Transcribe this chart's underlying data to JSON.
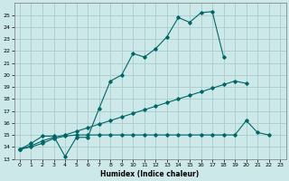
{
  "title": "",
  "xlabel": "Humidex (Indice chaleur)",
  "ylabel": "",
  "bg_color": "#cce8e8",
  "grid_color": "#aacccc",
  "line_color": "#006666",
  "xlim": [
    -0.5,
    23.5
  ],
  "ylim": [
    13,
    26
  ],
  "xticks": [
    0,
    1,
    2,
    3,
    4,
    5,
    6,
    7,
    8,
    9,
    10,
    11,
    12,
    13,
    14,
    15,
    16,
    17,
    18,
    19,
    20,
    21,
    22,
    23
  ],
  "yticks": [
    13,
    14,
    15,
    16,
    17,
    18,
    19,
    20,
    21,
    22,
    23,
    24,
    25
  ],
  "series": [
    {
      "x": [
        0,
        1,
        2,
        3,
        4,
        5,
        6,
        7,
        8,
        9,
        10,
        11,
        12,
        13,
        14,
        15,
        16,
        17,
        18
      ],
      "y": [
        13.8,
        14.3,
        14.9,
        14.9,
        13.2,
        14.8,
        14.8,
        17.2,
        19.5,
        20.0,
        21.8,
        21.5,
        22.2,
        23.2,
        24.8,
        24.4,
        25.2,
        25.3,
        21.5
      ]
    },
    {
      "x": [
        0,
        1,
        2,
        3,
        4,
        5,
        6,
        7,
        8,
        9,
        10,
        11,
        12,
        13,
        14,
        15,
        16,
        17,
        18,
        19,
        20
      ],
      "y": [
        13.8,
        14.1,
        14.5,
        14.8,
        15.0,
        15.3,
        15.6,
        15.9,
        16.2,
        16.5,
        16.8,
        17.1,
        17.4,
        17.7,
        18.0,
        18.3,
        18.6,
        18.9,
        19.2,
        19.5,
        19.3
      ]
    },
    {
      "x": [
        0,
        1,
        2,
        3,
        4,
        5,
        6,
        7,
        8,
        9,
        10,
        11,
        12,
        13,
        14,
        15,
        16,
        17,
        18,
        19,
        20,
        21,
        22
      ],
      "y": [
        13.8,
        14.0,
        14.3,
        14.7,
        14.9,
        15.0,
        15.0,
        15.0,
        15.0,
        15.0,
        15.0,
        15.0,
        15.0,
        15.0,
        15.0,
        15.0,
        15.0,
        15.0,
        15.0,
        15.0,
        16.2,
        15.2,
        15.0
      ]
    }
  ]
}
